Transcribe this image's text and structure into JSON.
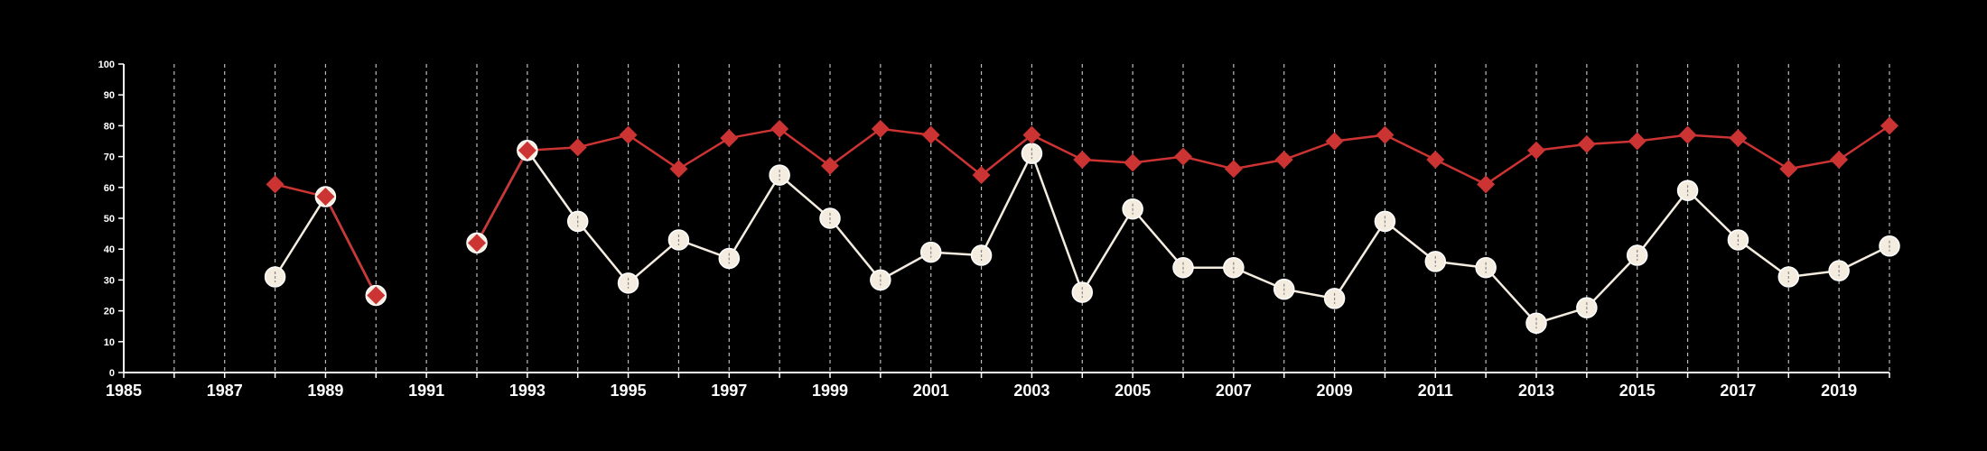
{
  "chart_data": {
    "type": "line",
    "title": "",
    "xlabel": "",
    "ylabel": "",
    "xlim": [
      1985,
      2020
    ],
    "ylim": [
      0,
      100
    ],
    "x_ticks": [
      1985,
      1987,
      1989,
      1991,
      1993,
      1995,
      1997,
      1999,
      2001,
      2003,
      2005,
      2007,
      2009,
      2011,
      2013,
      2015,
      2017,
      2019
    ],
    "y_ticks": [
      0,
      10,
      20,
      30,
      40,
      50,
      60,
      70,
      80,
      90,
      100
    ],
    "x": [
      1988,
      1989,
      1990,
      1991,
      1992,
      1993,
      1994,
      1995,
      1996,
      1997,
      1998,
      1999,
      2000,
      2001,
      2002,
      2003,
      2004,
      2005,
      2006,
      2007,
      2008,
      2009,
      2010,
      2011,
      2012,
      2013,
      2014,
      2015,
      2016,
      2017,
      2018,
      2019,
      2020
    ],
    "series": [
      {
        "color": "#cc3333",
        "marker": "diamond",
        "values": [
          61,
          57,
          25,
          null,
          42,
          72,
          73,
          77,
          66,
          76,
          79,
          67,
          79,
          77,
          64,
          77,
          69,
          68,
          70,
          66,
          69,
          75,
          77,
          69,
          61,
          72,
          74,
          75,
          77,
          76,
          66,
          69,
          80
        ]
      },
      {
        "color": "#f5ece0",
        "marker": "circle",
        "values": [
          31,
          57,
          25,
          null,
          42,
          72,
          49,
          29,
          43,
          37,
          64,
          50,
          30,
          39,
          38,
          71,
          26,
          53,
          34,
          34,
          27,
          24,
          49,
          36,
          34,
          16,
          21,
          38,
          59,
          43,
          31,
          33,
          41
        ]
      }
    ],
    "grid": {
      "vertical": true,
      "horizontal": false,
      "style": "dashed"
    },
    "legend": "none"
  }
}
